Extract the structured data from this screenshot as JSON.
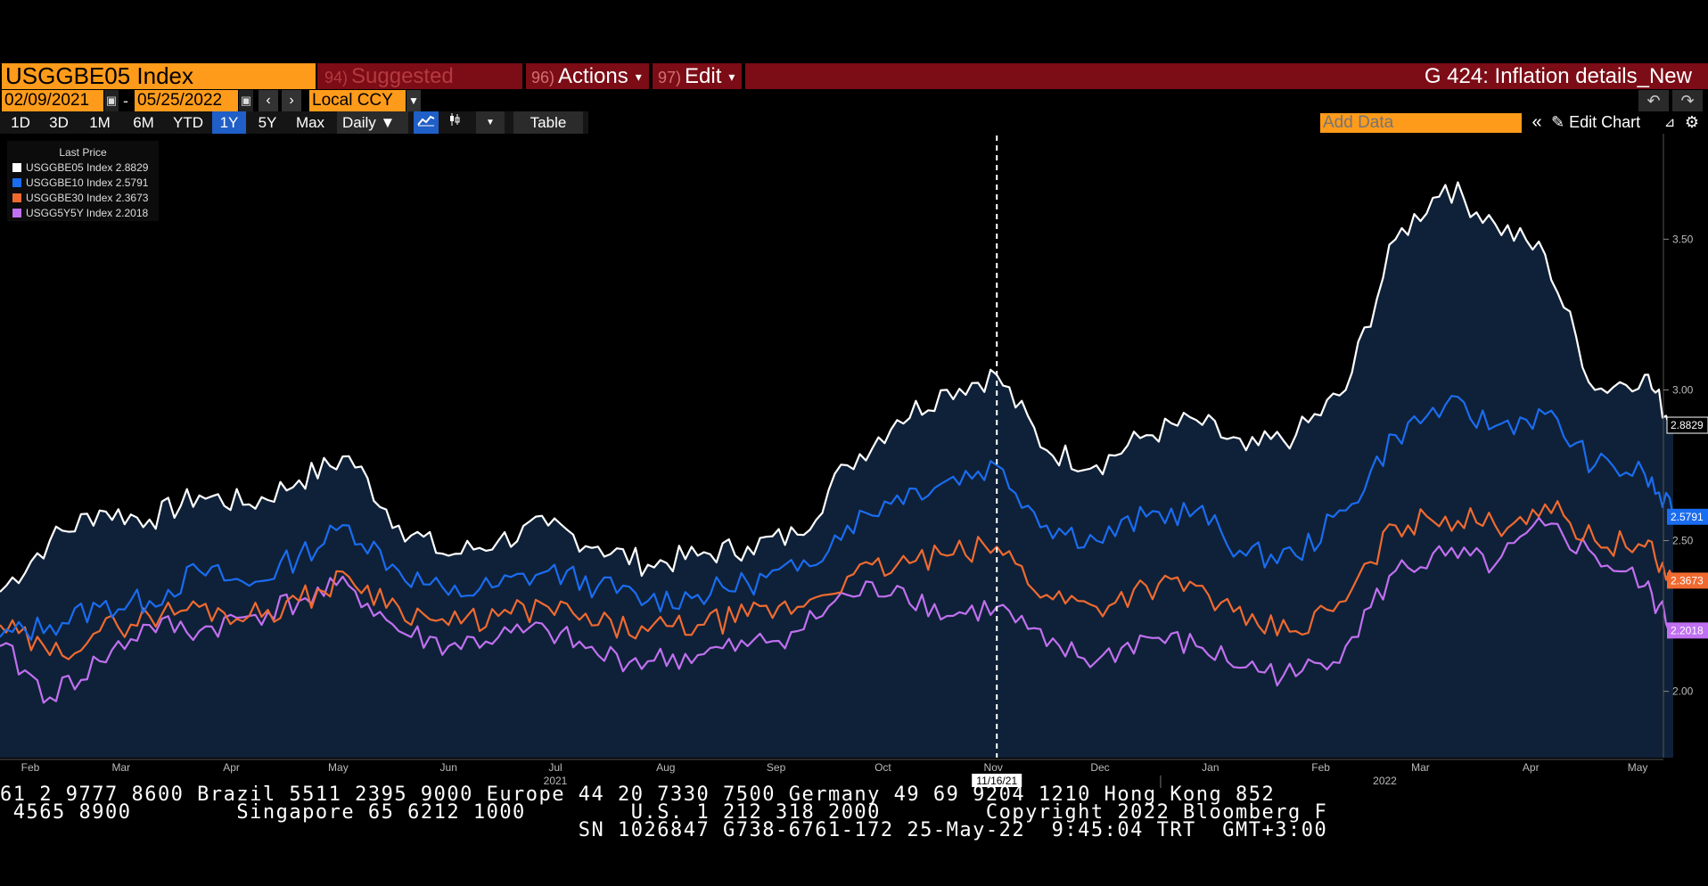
{
  "toolbar": {
    "ticker": "USGGBE05 Index",
    "suggest_num": "94)",
    "suggest_label": "Suggested Charts",
    "actions_num": "96)",
    "actions_label": "Actions",
    "edit_num": "97)",
    "edit_label": "Edit",
    "caret": "▾",
    "chart_title": "G 424: Inflation details_New"
  },
  "dates": {
    "start": "02/09/2021",
    "dash": "-",
    "end": "05/25/2022",
    "currency": "Local CCY"
  },
  "ranges": [
    "1D",
    "3D",
    "1M",
    "6M",
    "YTD",
    "1Y",
    "5Y",
    "Max"
  ],
  "active_range": "1Y",
  "frequency": "Daily ▼",
  "table_label": "Table",
  "add_data_placeholder": "Add Data",
  "edit_chart_label": "Edit Chart",
  "legend": {
    "title": "Last Price",
    "items": [
      {
        "label": "USGGBE05 Index 2.8829",
        "color": "#ffffff"
      },
      {
        "label": "USGGBE10 Index 2.5791",
        "color": "#1a6cf0"
      },
      {
        "label": "USGGBE30 Index 2.3673",
        "color": "#f06a30"
      },
      {
        "label": "USGG5Y5Y Index 2.2018",
        "color": "#c070f0"
      }
    ]
  },
  "crosshair_label": "11/16/21",
  "tape": {
    "line1": "61 2 9777 8600 Brazil 5511 2395 9000 Europe 44 20 7330 7500 Germany 49 69 9204 1210 Hong Kong 852",
    "line2": " 4565 8900        Singapore 65 6212 1000        U.S. 1 212 318 2000        Copyright 2022 Bloomberg F",
    "line3": "                                            SN 1026847 G738-6761-172 25-May-22  9:45:04 TRT  GMT+3:00"
  },
  "chart_data": {
    "type": "line",
    "ylim": [
      1.78,
      3.85
    ],
    "yticks": [
      "2.00",
      "2.50",
      "3.00",
      "3.50"
    ],
    "x_months": [
      "Feb",
      "Mar",
      "Apr",
      "May",
      "Jun",
      "Jul",
      "Aug",
      "Sep",
      "Oct",
      "Nov",
      "Dec",
      "Jan",
      "Feb",
      "Mar",
      "Apr",
      "May"
    ],
    "year_labels": [
      "2021",
      "2022"
    ],
    "x_dates": [
      "2021-02-09",
      "2021-02-23",
      "2021-03-09",
      "2021-03-23",
      "2021-04-06",
      "2021-04-20",
      "2021-05-04",
      "2021-05-18",
      "2021-06-01",
      "2021-06-15",
      "2021-06-29",
      "2021-07-13",
      "2021-07-27",
      "2021-08-10",
      "2021-08-24",
      "2021-09-07",
      "2021-09-21",
      "2021-10-05",
      "2021-10-19",
      "2021-11-02",
      "2021-11-16",
      "2021-11-30",
      "2021-12-14",
      "2021-12-28",
      "2022-01-11",
      "2022-01-25",
      "2022-02-08",
      "2022-02-22",
      "2022-03-08",
      "2022-03-22",
      "2022-04-05",
      "2022-04-19",
      "2022-05-03",
      "2022-05-17",
      "2022-05-25"
    ],
    "series": [
      {
        "name": "USGGBE05 Index",
        "color": "#ffffff",
        "last": "2.8829",
        "values": [
          2.33,
          2.5,
          2.6,
          2.57,
          2.65,
          2.62,
          2.7,
          2.78,
          2.55,
          2.45,
          2.5,
          2.55,
          2.48,
          2.42,
          2.45,
          2.48,
          2.52,
          2.75,
          2.9,
          3.0,
          3.05,
          2.8,
          2.75,
          2.85,
          2.9,
          2.8,
          2.85,
          3.0,
          3.5,
          3.68,
          3.55,
          3.45,
          3.0,
          3.05,
          2.88
        ]
      },
      {
        "name": "USGGBE10 Index",
        "color": "#1a6cf0",
        "last": "2.5791",
        "values": [
          2.18,
          2.22,
          2.28,
          2.3,
          2.4,
          2.35,
          2.45,
          2.55,
          2.4,
          2.32,
          2.35,
          2.4,
          2.35,
          2.3,
          2.32,
          2.36,
          2.4,
          2.55,
          2.65,
          2.7,
          2.75,
          2.55,
          2.5,
          2.58,
          2.6,
          2.45,
          2.45,
          2.6,
          2.85,
          2.95,
          2.88,
          2.92,
          2.75,
          2.72,
          2.58
        ]
      },
      {
        "name": "USGGBE30 Index",
        "color": "#f06a30",
        "last": "2.3673",
        "values": [
          2.22,
          2.12,
          2.2,
          2.25,
          2.28,
          2.25,
          2.3,
          2.38,
          2.28,
          2.22,
          2.25,
          2.28,
          2.22,
          2.2,
          2.22,
          2.25,
          2.28,
          2.38,
          2.42,
          2.45,
          2.48,
          2.32,
          2.28,
          2.35,
          2.35,
          2.22,
          2.2,
          2.3,
          2.55,
          2.58,
          2.55,
          2.62,
          2.5,
          2.48,
          2.37
        ]
      },
      {
        "name": "USGG5Y5Y Index",
        "color": "#c070f0",
        "last": "2.2018",
        "values": [
          2.15,
          1.98,
          2.1,
          2.22,
          2.2,
          2.25,
          2.3,
          2.35,
          2.2,
          2.15,
          2.18,
          2.2,
          2.12,
          2.1,
          2.12,
          2.15,
          2.2,
          2.32,
          2.35,
          2.25,
          2.28,
          2.15,
          2.1,
          2.18,
          2.15,
          2.08,
          2.05,
          2.15,
          2.4,
          2.45,
          2.42,
          2.55,
          2.45,
          2.35,
          2.2
        ]
      }
    ]
  }
}
